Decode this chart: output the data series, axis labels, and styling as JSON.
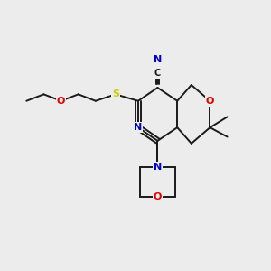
{
  "background_color": "#ececec",
  "bond_color": "#1a1a1a",
  "atom_colors": {
    "N": "#0000cc",
    "O": "#dd0000",
    "S": "#cccc00",
    "C": "#1a1a1a"
  },
  "figsize": [
    3.0,
    3.0
  ],
  "dpi": 100
}
